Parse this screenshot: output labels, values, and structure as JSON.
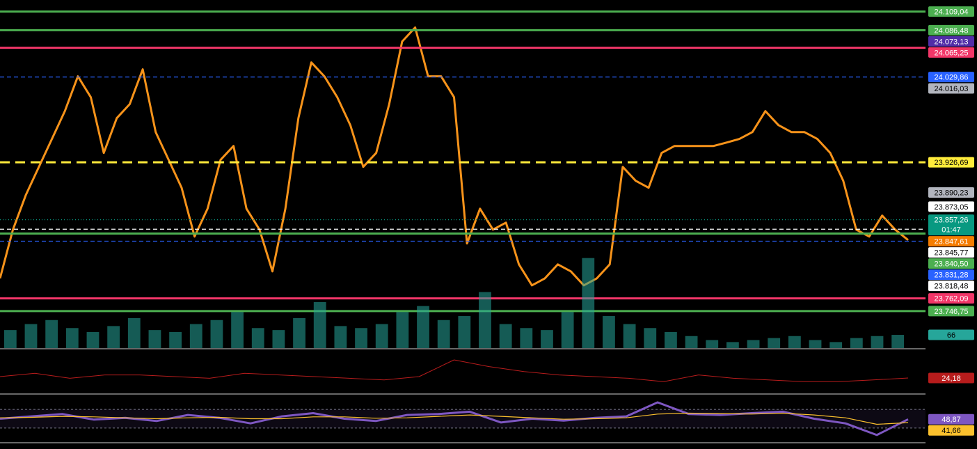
{
  "chart_data": [
    {
      "type": "line",
      "color": "#f7931a",
      "values": [
        23786.3,
        23845.3,
        23887.5,
        23921.2,
        23954.9,
        23988.6,
        24030.7,
        24005.4,
        23938.0,
        23980.1,
        23997.0,
        24039.1,
        23963.3,
        23929.6,
        23895.9,
        23836.9,
        23870.6,
        23929.6,
        23946.4,
        23870.6,
        23845.3,
        23794.8,
        23870.6,
        23980.1,
        24047.5,
        24030.7,
        24005.4,
        23971.7,
        23921.2,
        23938.0,
        23997.0,
        24072.8,
        24089.7,
        24030.7,
        24030.7,
        24005.4,
        23828.5,
        23870.6,
        23845.3,
        23853.7,
        23803.2,
        23777.9,
        23786.3,
        23803.2,
        23794.8,
        23777.9,
        23786.3,
        23803.2,
        23921.2,
        23904.3,
        23895.9,
        23938.0,
        23946.4,
        23946.4,
        23946.4,
        23946.4,
        23950.6,
        23954.9,
        23963.3,
        23988.6,
        23971.7,
        23963.3,
        23963.3,
        23954.9,
        23938.0,
        23904.3,
        23845.3,
        23836.9,
        23862.2,
        23845.3,
        23832.7
      ],
      "ylim": [
        23702,
        24123
      ],
      "countdown": "01:47",
      "levels": [
        {
          "value": 24109.04,
          "label": "24.109,04",
          "color": "#4caf50",
          "style": "solid",
          "text_color": "#fff"
        },
        {
          "value": 24086.48,
          "label": "24.086,48",
          "color": "#4caf50",
          "style": "solid",
          "text_color": "#fff"
        },
        {
          "value": 24073.13,
          "label": "24.073,13",
          "color": "#512da8",
          "style": "none",
          "text_color": "#fff"
        },
        {
          "value": 24065.25,
          "label": "24.065,25",
          "color": "#f23668",
          "style": "solid",
          "text_color": "#fff"
        },
        {
          "value": 24029.86,
          "label": "24.029,86",
          "color": "#2962ff",
          "style": "dashed",
          "text_color": "#fff"
        },
        {
          "value": 24016.03,
          "label": "24.016,03",
          "color": "#b2b5be",
          "style": "none",
          "text_color": "#000"
        },
        {
          "value": 23926.69,
          "label": "23.926,69",
          "color": "#ffeb3b",
          "style": "bold-dashed",
          "text_color": "#000"
        },
        {
          "value": 23890.23,
          "label": "23.890,23",
          "color": "#b2b5be",
          "style": "none",
          "text_color": "#000"
        },
        {
          "value": 23873.05,
          "label": "23.873,05",
          "color": "#ffffff",
          "style": "none",
          "text_color": "#000"
        },
        {
          "value": 23857.26,
          "label": "23.857,26",
          "color": "#089981",
          "style": "dotted",
          "text_color": "#fff"
        },
        {
          "value": 23847.61,
          "label": "23.847,61",
          "color": "#f57c00",
          "style": "none",
          "text_color": "#fff"
        },
        {
          "value": 23845.77,
          "label": "23.845,77",
          "color": "#ffffff",
          "style": "dashed",
          "text_color": "#000"
        },
        {
          "value": 23840.5,
          "label": "23.840,50",
          "color": "#4caf50",
          "style": "solid",
          "text_color": "#fff"
        },
        {
          "value": 23831.28,
          "label": "23.831,28",
          "color": "#2962ff",
          "style": "dashed",
          "text_color": "#fff"
        },
        {
          "value": 23818.48,
          "label": "23.818,48",
          "color": "#ffffff",
          "style": "none",
          "text_color": "#000"
        },
        {
          "value": 23762.09,
          "label": "23.762,09",
          "color": "#f23668",
          "style": "solid",
          "text_color": "#fff"
        },
        {
          "value": 23746.75,
          "label": "23.746,75",
          "color": "#4caf50",
          "style": "solid",
          "text_color": "#fff"
        }
      ]
    },
    {
      "type": "bar",
      "color": "#26a69a",
      "values": [
        90,
        120,
        140,
        100,
        80,
        110,
        150,
        90,
        80,
        120,
        140,
        180,
        100,
        90,
        150,
        230,
        110,
        100,
        120,
        180,
        210,
        140,
        160,
        280,
        120,
        100,
        90,
        180,
        450,
        160,
        120,
        100,
        80,
        60,
        40,
        30,
        40,
        50,
        60,
        40,
        30,
        50,
        60,
        66
      ],
      "ylim": [
        0,
        1740
      ],
      "levels": [
        {
          "value": 66,
          "label": "66",
          "color": "#26a69a",
          "style": "none",
          "text_color": "#000"
        }
      ]
    },
    {
      "type": "line",
      "color": "#b71c1c",
      "values": [
        25,
        27,
        24,
        26,
        26,
        25,
        24,
        27,
        26,
        25,
        24,
        23,
        25,
        35,
        31,
        28,
        26,
        25,
        24,
        22,
        26,
        24,
        23,
        22,
        22,
        23,
        24.18
      ],
      "ylim": [
        15,
        40
      ],
      "levels": [
        {
          "value": 24.18,
          "label": "24,18",
          "color": "#b71c1c",
          "style": "none",
          "text_color": "#fff"
        }
      ]
    },
    {
      "type": "line",
      "series": [
        {
          "color": "#7e57c2",
          "values": [
            50,
            55,
            60,
            48,
            52,
            45,
            58,
            52,
            40,
            55,
            62,
            50,
            45,
            58,
            60,
            65,
            42,
            50,
            46,
            52,
            55,
            85,
            60,
            58,
            62,
            65,
            50,
            40,
            15,
            48.87
          ]
        },
        {
          "color": "#fbc02d",
          "values": [
            52,
            53,
            55,
            54,
            52,
            50,
            52,
            53,
            50,
            50,
            54,
            54,
            51,
            52,
            55,
            58,
            55,
            52,
            49,
            50,
            52,
            60,
            62,
            61,
            60,
            62,
            58,
            52,
            38,
            41.66
          ]
        }
      ],
      "ylim": [
        0,
        97
      ],
      "bands": [
        30,
        70
      ],
      "levels": [
        {
          "value": 48.87,
          "label": "48,87",
          "color": "#7e57c2",
          "style": "none",
          "text_color": "#fff"
        },
        {
          "value": 41.66,
          "label": "41,66",
          "color": "#fbc02d",
          "style": "none",
          "text_color": "#000"
        }
      ]
    }
  ]
}
